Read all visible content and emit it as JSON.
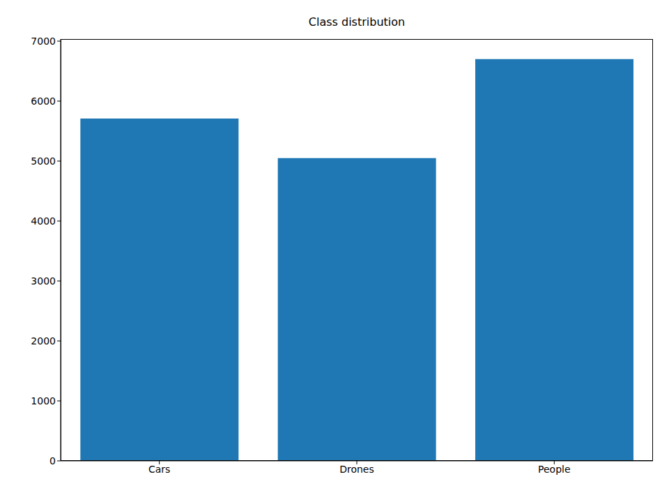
{
  "chart_data": {
    "type": "bar",
    "title": "Class distribution",
    "categories": [
      "Cars",
      "Drones",
      "People"
    ],
    "values": [
      5710,
      5050,
      6700
    ],
    "color": "#1f77b4",
    "ylim": [
      0,
      7035
    ],
    "yticks": [
      0,
      1000,
      2000,
      3000,
      4000,
      5000,
      6000,
      7000
    ],
    "grid": false
  }
}
